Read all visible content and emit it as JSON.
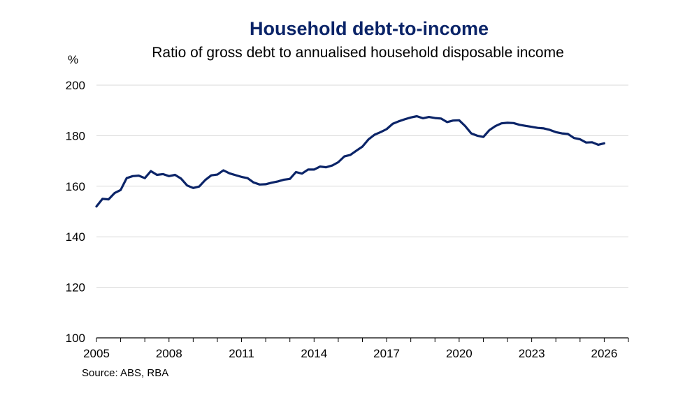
{
  "chart_data": {
    "type": "line",
    "title": "Household debt-to-income",
    "subtitle": "Ratio of gross debt to annualised household disposable income",
    "y_unit": "%",
    "source": "Source: ABS, RBA",
    "xlim": [
      2005,
      2027
    ],
    "ylim": [
      100,
      200
    ],
    "x_ticks": [
      2005,
      2008,
      2011,
      2014,
      2017,
      2020,
      2023,
      2026
    ],
    "y_ticks": [
      100,
      120,
      140,
      160,
      180,
      200
    ],
    "grid": "horizontal",
    "line_color": "#0b2468",
    "title_color": "#0b2468",
    "series": [
      {
        "x": [
          2005.0,
          2005.25,
          2005.5,
          2005.75,
          2006.0,
          2006.25,
          2006.5,
          2006.75,
          2007.0,
          2007.25,
          2007.5,
          2007.75,
          2008.0,
          2008.25,
          2008.5,
          2008.75,
          2009.0,
          2009.25,
          2009.5,
          2009.75,
          2010.0,
          2010.25,
          2010.5,
          2010.75,
          2011.0,
          2011.25,
          2011.5,
          2011.75,
          2012.0,
          2012.25,
          2012.5,
          2012.75,
          2013.0,
          2013.25,
          2013.5,
          2013.75,
          2014.0,
          2014.25,
          2014.5,
          2014.75,
          2015.0,
          2015.25,
          2015.5,
          2015.75,
          2016.0,
          2016.25,
          2016.5,
          2016.75,
          2017.0,
          2017.25,
          2017.5,
          2017.75,
          2018.0,
          2018.25,
          2018.5,
          2018.75,
          2019.0,
          2019.25,
          2019.5,
          2019.75,
          2020.0,
          2020.25,
          2020.5,
          2020.75,
          2021.0,
          2021.25,
          2021.5,
          2021.75,
          2022.0,
          2022.25,
          2022.5,
          2022.75,
          2023.0,
          2023.25,
          2023.5,
          2023.75,
          2024.0,
          2024.25,
          2024.5,
          2024.75,
          2025.0,
          2025.25,
          2025.5,
          2025.75,
          2026.0
        ],
        "y": [
          152.0,
          155.0,
          154.8,
          157.3,
          158.5,
          163.2,
          164.0,
          164.2,
          163.2,
          166.0,
          164.5,
          164.8,
          164.0,
          164.5,
          163.0,
          160.3,
          159.3,
          159.9,
          162.5,
          164.3,
          164.6,
          166.3,
          165.1,
          164.4,
          163.7,
          163.2,
          161.5,
          160.7,
          160.8,
          161.4,
          161.9,
          162.6,
          162.9,
          165.6,
          165.0,
          166.6,
          166.6,
          167.8,
          167.5,
          168.2,
          169.5,
          171.8,
          172.4,
          174.1,
          175.7,
          178.5,
          180.4,
          181.4,
          182.6,
          184.7,
          185.7,
          186.5,
          187.2,
          187.7,
          186.9,
          187.4,
          187.0,
          186.8,
          185.4,
          186.0,
          186.1,
          183.8,
          180.9,
          180.0,
          179.5,
          182.2,
          183.8,
          184.9,
          185.1,
          185.0,
          184.3,
          183.9,
          183.5,
          183.1,
          182.9,
          182.3,
          181.4,
          180.9,
          180.7,
          179.1,
          178.6,
          177.3,
          177.4,
          176.4,
          177.0
        ]
      }
    ]
  }
}
